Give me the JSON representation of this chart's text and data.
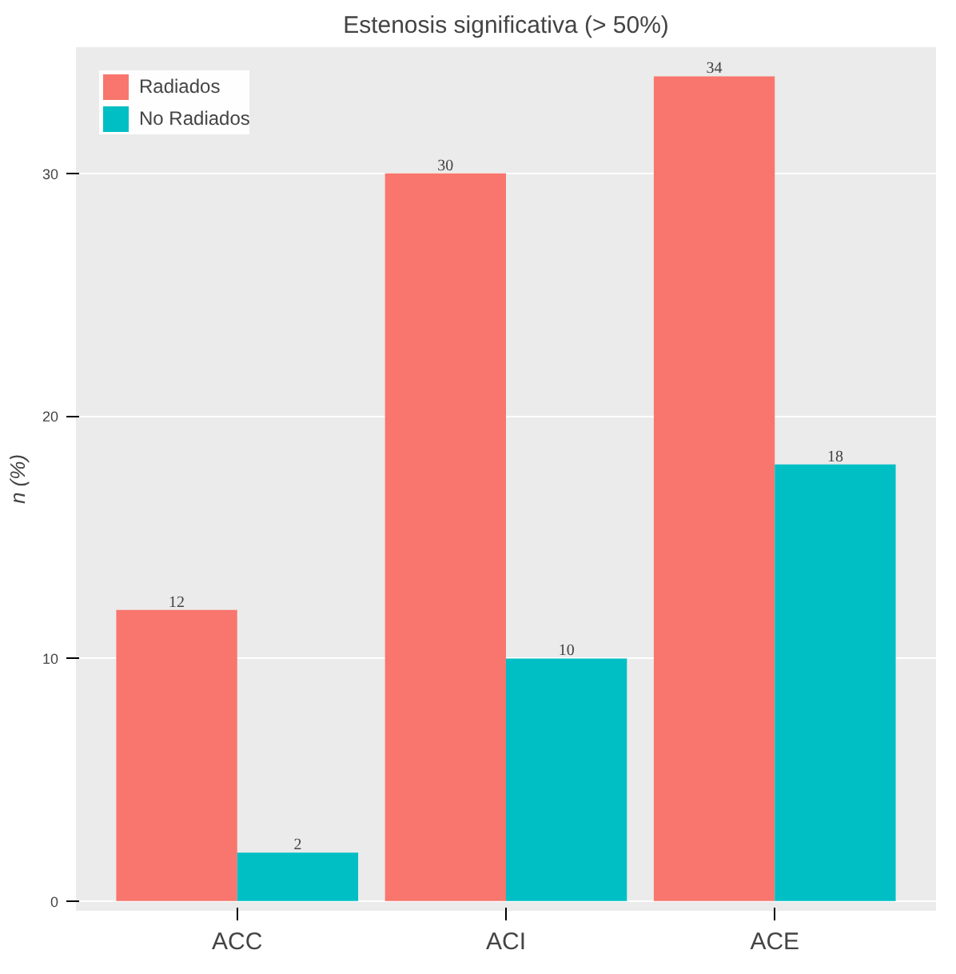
{
  "chart_data": {
    "type": "bar",
    "title": "Estenosis significativa (> 50%)",
    "ylabel": "n (%)",
    "categories": [
      "ACC",
      "ACI",
      "ACE"
    ],
    "series": [
      {
        "name": "Radiados",
        "color": "#f8766d",
        "values": [
          12,
          30,
          34
        ]
      },
      {
        "name": "No Radiados",
        "color": "#00bfc4",
        "values": [
          2,
          10,
          18
        ]
      }
    ],
    "ylim": [
      -0.4,
      35.2
    ],
    "yticks": [
      0,
      10,
      20,
      30
    ],
    "grid": true,
    "legend": "top left",
    "data_labels": true
  }
}
